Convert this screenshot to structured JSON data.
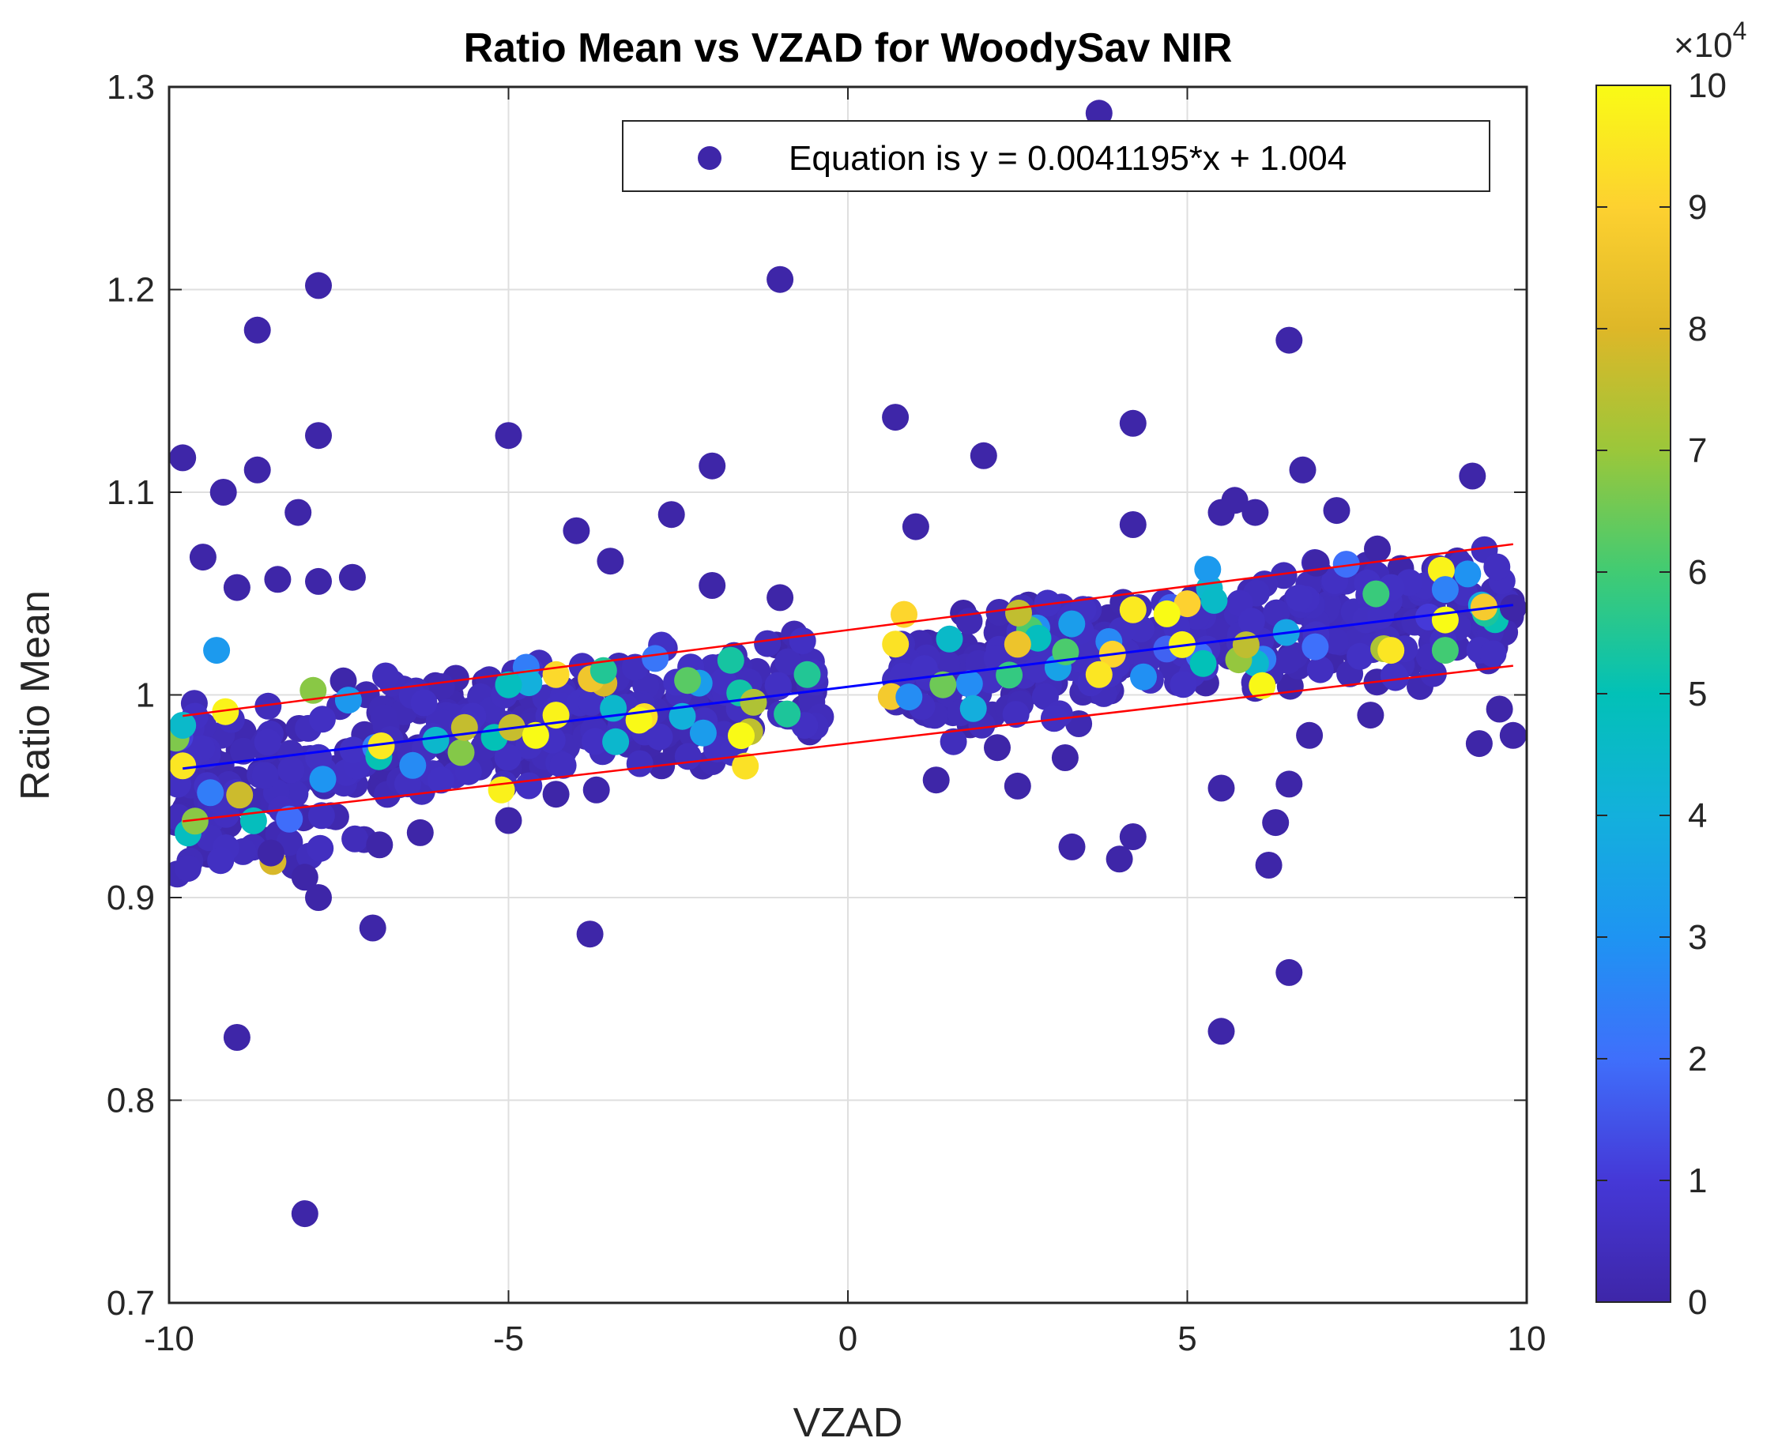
{
  "chart_data": {
    "type": "scatter",
    "title": "Ratio Mean vs VZAD for WoodySav NIR",
    "xlabel": "VZAD",
    "ylabel": "Ratio Mean",
    "xlim": [
      -10,
      10
    ],
    "ylim": [
      0.7,
      1.3
    ],
    "xticks": [
      -10,
      -5,
      0,
      5,
      10
    ],
    "xtick_labels": [
      "-10",
      "-5",
      "0",
      "5",
      "10"
    ],
    "yticks": [
      0.7,
      0.8,
      0.9,
      1.0,
      1.1,
      1.2,
      1.3
    ],
    "ytick_labels": [
      "0.7",
      "0.8",
      "0.9",
      "1",
      "1.1",
      "1.2",
      "1.3"
    ],
    "grid": true,
    "legend": {
      "position": "top-right",
      "entries": [
        "Equation is y = 0.0041195*x + 1.004"
      ],
      "marker_color": "#3e26a8"
    },
    "fit_line": {
      "slope": 0.0041195,
      "intercept": 1.004,
      "color": "#0000ff"
    },
    "confidence_band": {
      "offset": 0.028,
      "color": "#ff0000"
    },
    "colorbar": {
      "range": [
        0,
        10
      ],
      "ticks": [
        0,
        1,
        2,
        3,
        4,
        5,
        6,
        7,
        8,
        9,
        10
      ],
      "tick_labels": [
        "0",
        "1",
        "2",
        "3",
        "4",
        "5",
        "6",
        "7",
        "8",
        "9",
        "10"
      ],
      "exponent_label": "×10",
      "exponent_power": "4",
      "colormap": "parula"
    },
    "outliers": [
      {
        "x": 3.7,
        "y": 1.287,
        "c": 0
      },
      {
        "x": -7.8,
        "y": 1.202,
        "c": 0
      },
      {
        "x": -1.0,
        "y": 1.205,
        "c": 0
      },
      {
        "x": -8.7,
        "y": 1.18,
        "c": 0
      },
      {
        "x": 6.5,
        "y": 1.175,
        "c": 0
      },
      {
        "x": 0.7,
        "y": 1.137,
        "c": 0
      },
      {
        "x": 4.2,
        "y": 1.134,
        "c": 0
      },
      {
        "x": -7.8,
        "y": 1.128,
        "c": 0
      },
      {
        "x": -5.0,
        "y": 1.128,
        "c": 0
      },
      {
        "x": 2.0,
        "y": 1.118,
        "c": 0
      },
      {
        "x": -9.8,
        "y": 1.117,
        "c": 0
      },
      {
        "x": -2.0,
        "y": 1.113,
        "c": 0
      },
      {
        "x": -8.7,
        "y": 1.111,
        "c": 0
      },
      {
        "x": 6.7,
        "y": 1.111,
        "c": 0
      },
      {
        "x": 9.2,
        "y": 1.108,
        "c": 0
      },
      {
        "x": -9.2,
        "y": 1.1,
        "c": 0
      },
      {
        "x": 5.7,
        "y": 1.096,
        "c": 0
      },
      {
        "x": 5.5,
        "y": 1.09,
        "c": 0
      },
      {
        "x": 6.0,
        "y": 1.09,
        "c": 0
      },
      {
        "x": 7.2,
        "y": 1.091,
        "c": 0
      },
      {
        "x": -8.1,
        "y": 1.09,
        "c": 0
      },
      {
        "x": -2.6,
        "y": 1.089,
        "c": 0
      },
      {
        "x": 4.2,
        "y": 1.084,
        "c": 0
      },
      {
        "x": 1.0,
        "y": 1.083,
        "c": 0
      },
      {
        "x": -4.0,
        "y": 1.081,
        "c": 0
      },
      {
        "x": -9.5,
        "y": 1.068,
        "c": 0
      },
      {
        "x": -3.5,
        "y": 1.066,
        "c": 0
      },
      {
        "x": 6.9,
        "y": 1.065,
        "c": 0
      },
      {
        "x": 7.8,
        "y": 1.072,
        "c": 0
      },
      {
        "x": -8.4,
        "y": 1.057,
        "c": 0
      },
      {
        "x": -7.8,
        "y": 1.056,
        "c": 0
      },
      {
        "x": -7.3,
        "y": 1.058,
        "c": 0
      },
      {
        "x": -2.0,
        "y": 1.054,
        "c": 0
      },
      {
        "x": -1.0,
        "y": 1.048,
        "c": 0
      },
      {
        "x": -9.0,
        "y": 1.053,
        "c": 0
      },
      {
        "x": 5.3,
        "y": 1.062,
        "c": 3.2
      },
      {
        "x": -8.0,
        "y": 0.91,
        "c": 0
      },
      {
        "x": -7.8,
        "y": 0.9,
        "c": 0
      },
      {
        "x": -7.0,
        "y": 0.885,
        "c": 0
      },
      {
        "x": -3.8,
        "y": 0.882,
        "c": 0
      },
      {
        "x": -9.0,
        "y": 0.831,
        "c": 0
      },
      {
        "x": 5.5,
        "y": 0.834,
        "c": 0
      },
      {
        "x": 6.5,
        "y": 0.863,
        "c": 0
      },
      {
        "x": -8.0,
        "y": 0.744,
        "c": 0
      },
      {
        "x": 6.2,
        "y": 0.916,
        "c": 0
      },
      {
        "x": 4.0,
        "y": 0.919,
        "c": 0
      },
      {
        "x": 3.3,
        "y": 0.925,
        "c": 0
      },
      {
        "x": 4.2,
        "y": 0.93,
        "c": 0
      },
      {
        "x": 6.3,
        "y": 0.937,
        "c": 0
      },
      {
        "x": -6.9,
        "y": 0.926,
        "c": 0
      },
      {
        "x": -6.3,
        "y": 0.932,
        "c": 0
      },
      {
        "x": -8.5,
        "y": 0.922,
        "c": 0
      },
      {
        "x": 1.3,
        "y": 0.958,
        "c": 0
      },
      {
        "x": 2.5,
        "y": 0.955,
        "c": 0
      },
      {
        "x": 5.5,
        "y": 0.954,
        "c": 0
      },
      {
        "x": 6.5,
        "y": 0.956,
        "c": 0
      },
      {
        "x": 9.3,
        "y": 0.976,
        "c": 0
      },
      {
        "x": 9.8,
        "y": 0.98,
        "c": 0
      },
      {
        "x": 9.6,
        "y": 0.993,
        "c": 0
      },
      {
        "x": 7.7,
        "y": 0.99,
        "c": 0
      },
      {
        "x": 2.2,
        "y": 0.974,
        "c": 0
      },
      {
        "x": 3.2,
        "y": 0.969,
        "c": 0
      },
      {
        "x": -5.0,
        "y": 0.938,
        "c": 0
      },
      {
        "x": -4.3,
        "y": 0.951,
        "c": 0
      },
      {
        "x": 6.8,
        "y": 0.98,
        "c": 0
      },
      {
        "x": 9.8,
        "y": 1.043,
        "c": 0
      },
      {
        "x": 8.8,
        "y": 1.052,
        "c": 2.5
      },
      {
        "x": 8.8,
        "y": 1.037,
        "c": 10
      },
      {
        "x": 4.2,
        "y": 1.042,
        "c": 9.6
      },
      {
        "x": 2.5,
        "y": 1.025,
        "c": 8.5
      },
      {
        "x": 2.8,
        "y": 1.028,
        "c": 4.8
      },
      {
        "x": 3.7,
        "y": 1.01,
        "c": 9.5
      },
      {
        "x": -4.3,
        "y": 1.01,
        "c": 9.2
      },
      {
        "x": -4.3,
        "y": 0.99,
        "c": 9.8
      },
      {
        "x": -4.6,
        "y": 0.98,
        "c": 10
      },
      {
        "x": -0.6,
        "y": 1.01,
        "c": 5.5
      },
      {
        "x": -5.0,
        "y": 1.005,
        "c": 4.8
      },
      {
        "x": -9.3,
        "y": 1.022,
        "c": 3.2
      },
      {
        "x": -9.8,
        "y": 0.965,
        "c": 9.5
      },
      {
        "x": -9.8,
        "y": 0.985,
        "c": 4.5
      },
      {
        "x": 1.4,
        "y": 1.005,
        "c": 6.5
      },
      {
        "x": 5.0,
        "y": 1.045,
        "c": 9.0
      },
      {
        "x": -3.6,
        "y": 1.012,
        "c": 5.5
      },
      {
        "x": 8.0,
        "y": 1.022,
        "c": 9.5
      },
      {
        "x": 8.8,
        "y": 1.022,
        "c": 6.0
      },
      {
        "x": -4.7,
        "y": 1.006,
        "c": 4.0
      },
      {
        "x": 4.7,
        "y": 1.04,
        "c": 10
      },
      {
        "x": 0.9,
        "y": 0.999,
        "c": 2.8
      }
    ]
  }
}
